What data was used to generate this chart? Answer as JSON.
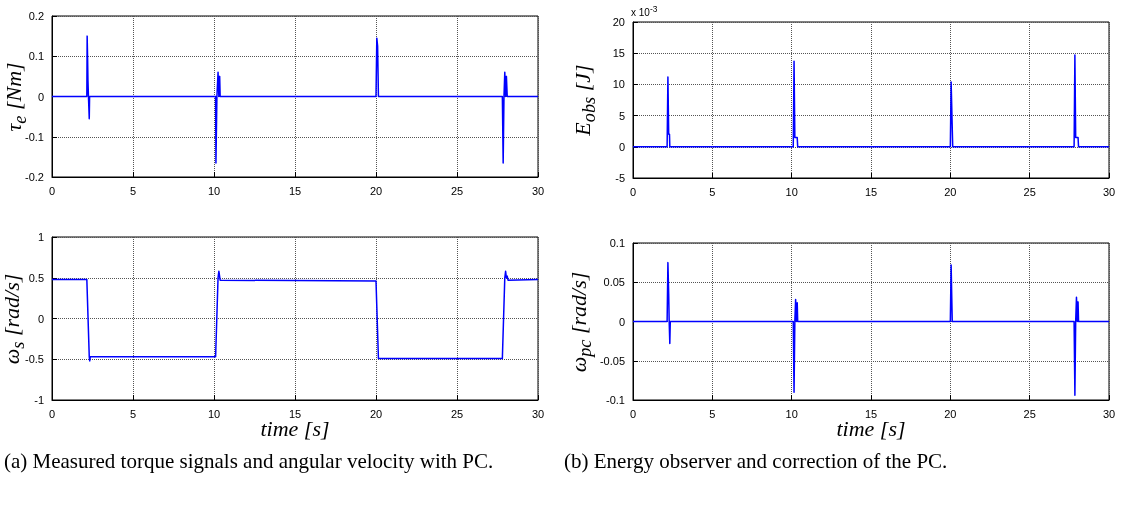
{
  "chart_data": [
    {
      "type": "line",
      "ylabel": "τ$_{e}$ [Nm]",
      "color": "#0000ff",
      "grid": true,
      "x": [
        0,
        2.15,
        2.17,
        2.2,
        2.22,
        2.25,
        2.3,
        2.32,
        10.1,
        10.12,
        10.18,
        10.25,
        10.3,
        10.35,
        10.38,
        20.0,
        20.05,
        20.1,
        20.15,
        27.8,
        27.85,
        27.9,
        27.95,
        28.0,
        28.05,
        28.1,
        30
      ],
      "values": [
        0,
        0,
        0.15,
        0.09,
        0.04,
        0,
        -0.055,
        0,
        0,
        -0.165,
        0,
        0.06,
        0,
        0.05,
        0,
        0,
        0.145,
        0.125,
        0,
        0,
        -0.165,
        0,
        0.06,
        0,
        0.05,
        0,
        0
      ],
      "xlim": [
        0,
        30
      ],
      "xticks": [
        0,
        5,
        10,
        15,
        20,
        25,
        30
      ],
      "ylim": [
        -0.2,
        0.2
      ],
      "yticks": [
        -0.2,
        -0.1,
        0,
        0.1,
        0.2
      ]
    },
    {
      "type": "line",
      "ylabel": "E$_{obs}$ [J]",
      "color": "#0000ff",
      "grid": true,
      "annotations": [
        "x 10$^{-3}$"
      ],
      "x": [
        0,
        2.15,
        2.2,
        2.25,
        2.3,
        2.32,
        10.1,
        10.15,
        10.2,
        10.35,
        10.38,
        20.0,
        20.05,
        20.15,
        27.8,
        27.85,
        27.9,
        28.05,
        28.08,
        30
      ],
      "values": [
        0,
        0,
        11.2,
        2,
        2,
        0,
        0,
        13.7,
        1.5,
        1.5,
        0,
        0,
        10.4,
        0,
        0,
        14.7,
        1.5,
        1.5,
        0,
        0
      ],
      "xlim": [
        0,
        30
      ],
      "xticks": [
        0,
        5,
        10,
        15,
        20,
        25,
        30
      ],
      "ylim": [
        -5,
        20
      ],
      "yticks": [
        -5,
        0,
        5,
        10,
        15,
        20
      ]
    },
    {
      "type": "line",
      "ylabel": "ω$_{s}$ [rad/s]",
      "xlabel": "time [s]",
      "color": "#0000ff",
      "grid": true,
      "annotations": [
        "(a) Measured torque signals and angular velocity with PC."
      ],
      "x": [
        0,
        2.15,
        2.3,
        2.33,
        2.36,
        10.1,
        10.25,
        10.3,
        10.38,
        20.0,
        20.15,
        27.8,
        27.95,
        28.0,
        28.05,
        28.1,
        28.15,
        30
      ],
      "values": [
        0.48,
        0.48,
        -0.47,
        -0.52,
        -0.47,
        -0.47,
        0.5,
        0.58,
        0.47,
        0.46,
        -0.49,
        -0.49,
        0.5,
        0.58,
        0.5,
        0.52,
        0.47,
        0.48
      ],
      "xlim": [
        0,
        30
      ],
      "xticks": [
        0,
        5,
        10,
        15,
        20,
        25,
        30
      ],
      "ylim": [
        -1,
        1
      ],
      "yticks": [
        -1,
        -0.5,
        0,
        0.5,
        1
      ]
    },
    {
      "type": "line",
      "ylabel": "ω$_{pc}$ [rad/s]",
      "xlabel": "time [s]",
      "color": "#0000ff",
      "grid": true,
      "annotations": [
        "(b) Energy observer and correction of the PC."
      ],
      "x": [
        0,
        2.15,
        2.2,
        2.25,
        2.28,
        2.32,
        2.35,
        10.1,
        10.15,
        10.2,
        10.25,
        10.3,
        10.35,
        10.38,
        20.0,
        20.05,
        20.12,
        27.8,
        27.85,
        27.9,
        27.95,
        28.0,
        28.05,
        28.08,
        30
      ],
      "values": [
        0,
        0,
        0.075,
        0.035,
        0,
        -0.028,
        0,
        0,
        -0.09,
        0,
        0.028,
        0,
        0.024,
        0,
        0,
        0.072,
        0,
        0,
        -0.094,
        0,
        0.031,
        0,
        0.025,
        0,
        0
      ],
      "xlim": [
        0,
        30
      ],
      "xticks": [
        0,
        5,
        10,
        15,
        20,
        25,
        30
      ],
      "ylim": [
        -0.1,
        0.1
      ],
      "yticks": [
        -0.1,
        -0.05,
        0,
        0.05,
        0.1
      ]
    }
  ]
}
